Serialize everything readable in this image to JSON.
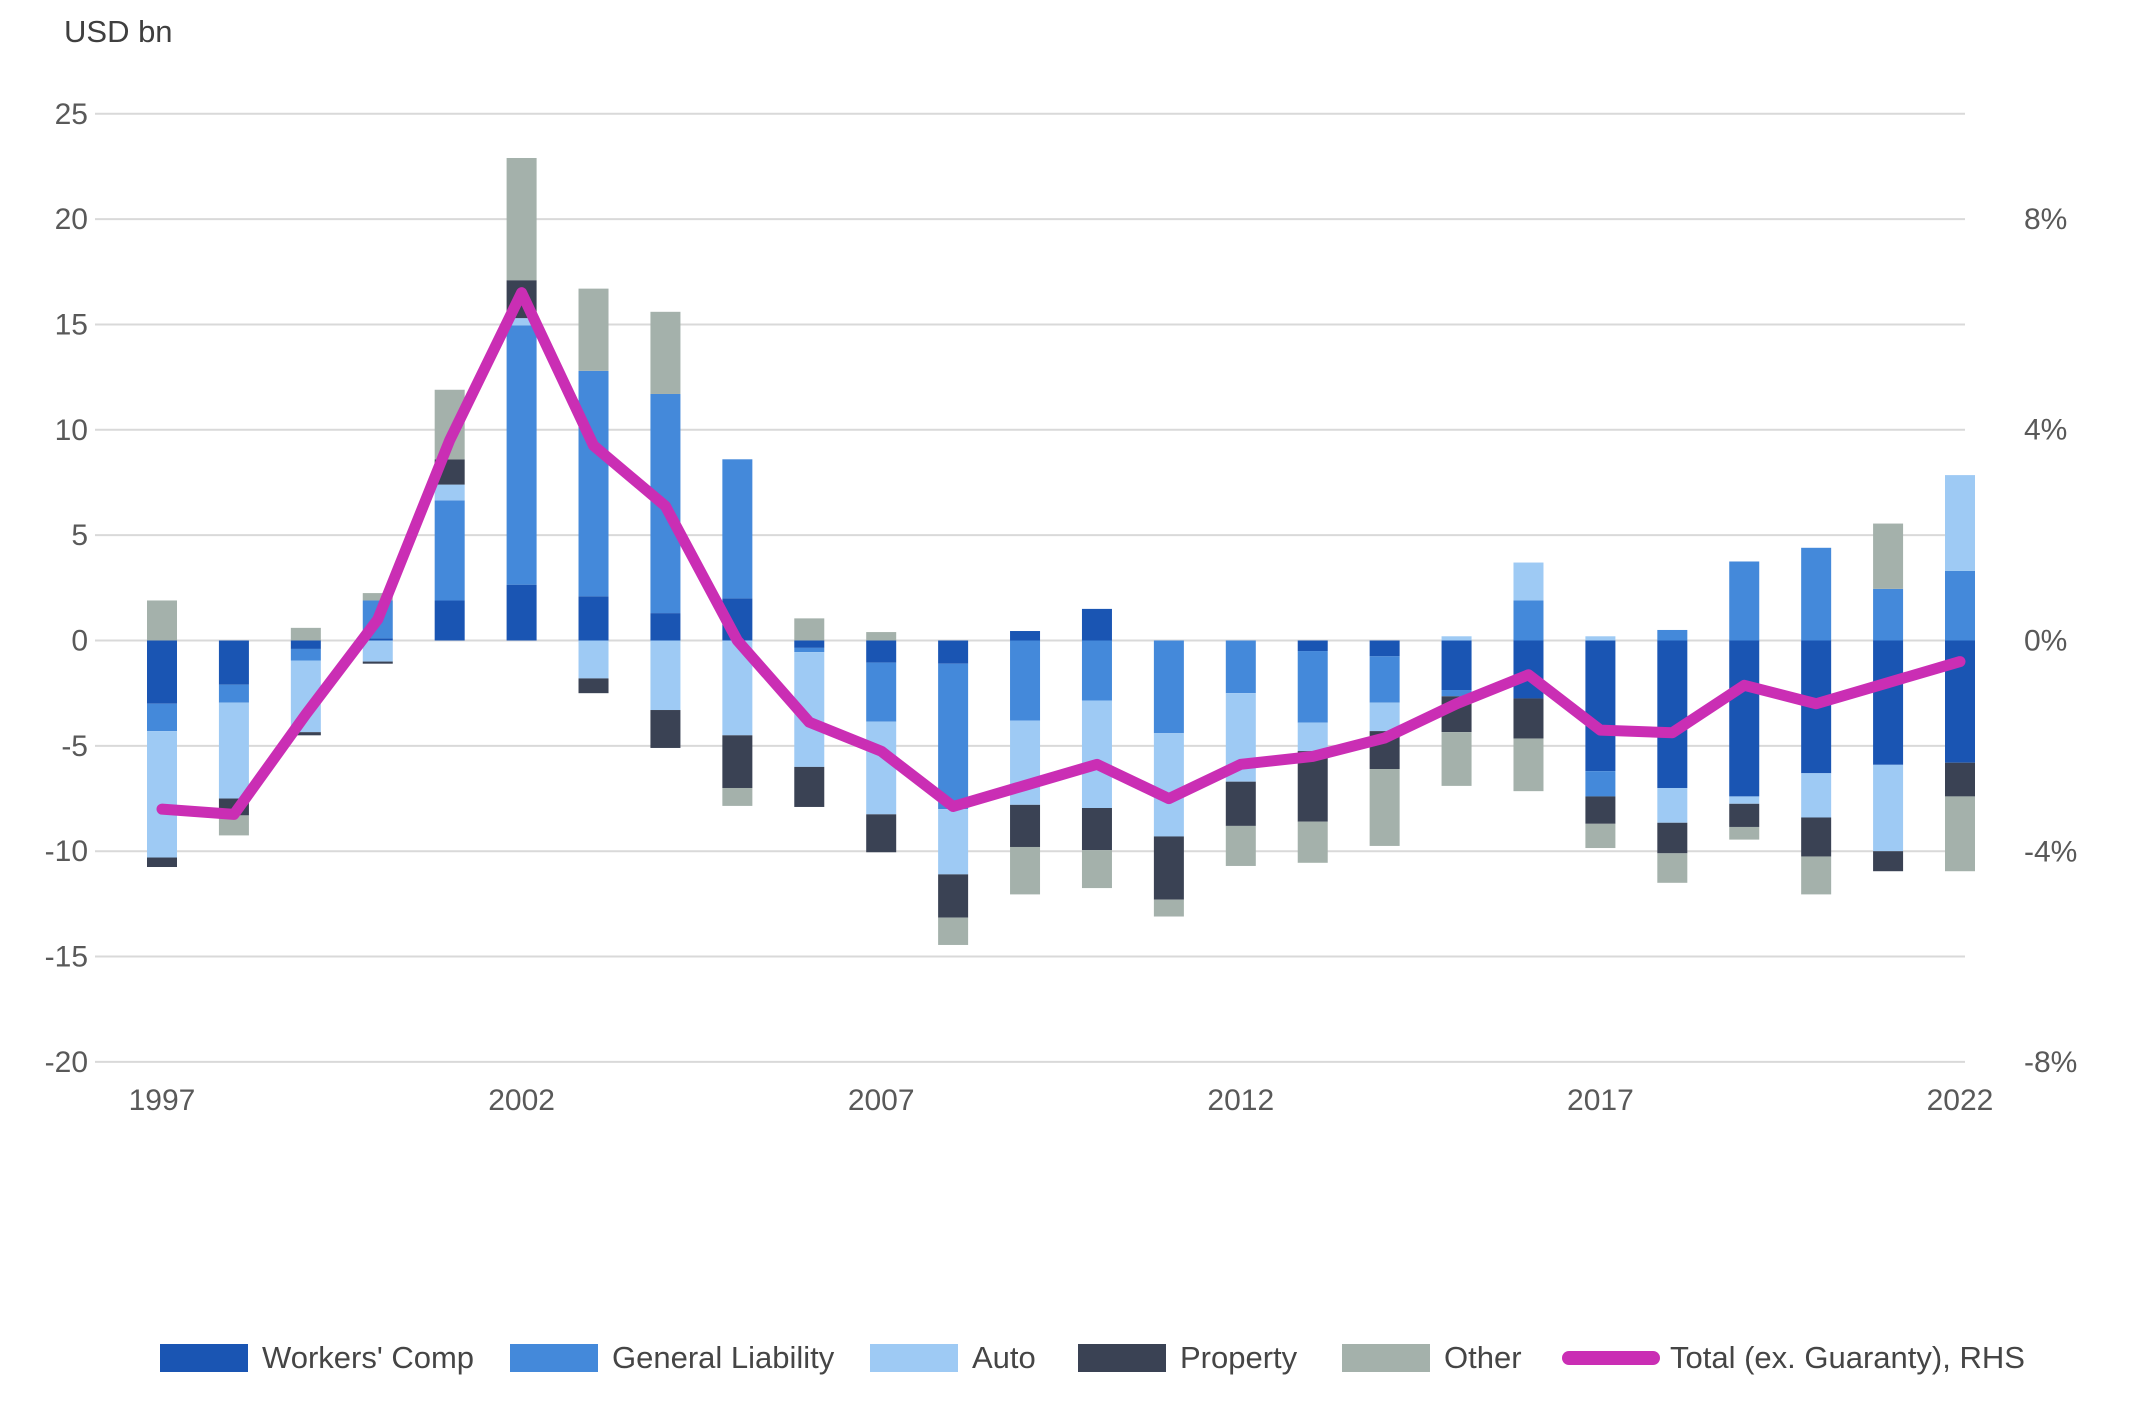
{
  "chart_data": {
    "type": "bar",
    "subtype": "stacked-bars-with-line-overlay",
    "title": "USD bn",
    "years": [
      1997,
      1998,
      1999,
      2000,
      2001,
      2002,
      2003,
      2004,
      2005,
      2006,
      2007,
      2008,
      2009,
      2010,
      2011,
      2012,
      2013,
      2014,
      2015,
      2016,
      2017,
      2018,
      2019,
      2020,
      2021,
      2022
    ],
    "series": [
      {
        "name": "Workers' Comp",
        "color_key": "workers_comp",
        "values": [
          -3.0,
          -2.1,
          -0.4,
          0.1,
          1.9,
          2.65,
          2.1,
          1.3,
          2.0,
          -0.35,
          -1.05,
          -1.1,
          0.45,
          1.5,
          0,
          0,
          -0.5,
          -0.75,
          -2.35,
          -2.75,
          -6.2,
          -7.0,
          -7.4,
          -6.3,
          -5.9,
          -5.8
        ]
      },
      {
        "name": "General Liability",
        "color_key": "general_liability",
        "values": [
          -1.3,
          -0.85,
          -0.55,
          1.8,
          4.75,
          12.3,
          10.7,
          10.4,
          6.6,
          -0.2,
          -2.8,
          -6.9,
          -3.8,
          -2.85,
          -4.4,
          -2.5,
          -3.4,
          -2.2,
          -0.3,
          1.9,
          -1.2,
          0.5,
          3.75,
          4.4,
          2.45,
          3.3
        ]
      },
      {
        "name": "Auto",
        "color_key": "auto",
        "values": [
          -6.0,
          -4.55,
          -3.4,
          -1.0,
          0.75,
          0.35,
          -1.8,
          -3.3,
          -4.5,
          -5.45,
          -4.4,
          -3.1,
          -4.0,
          -5.1,
          -4.9,
          -4.2,
          -1.35,
          -1.35,
          0.2,
          1.8,
          0.2,
          -1.65,
          -0.35,
          -2.1,
          -4.1,
          4.55
        ]
      },
      {
        "name": "Property",
        "color_key": "property",
        "values": [
          -0.45,
          -0.8,
          -0.15,
          -0.1,
          1.2,
          1.8,
          -0.7,
          -1.8,
          -2.5,
          -1.9,
          -1.8,
          -2.05,
          -2.0,
          -2.0,
          -3.0,
          -2.1,
          -3.35,
          -1.8,
          -1.7,
          -1.9,
          -1.3,
          -1.45,
          -1.1,
          -1.85,
          -0.95,
          -1.6
        ]
      },
      {
        "name": "Other",
        "color_key": "other",
        "values": [
          1.9,
          -0.95,
          0.6,
          0.35,
          3.3,
          5.8,
          3.9,
          3.9,
          -0.85,
          1.05,
          0.4,
          -1.3,
          -2.25,
          -1.8,
          -0.8,
          -1.9,
          -1.95,
          -3.65,
          -2.55,
          -2.5,
          -1.15,
          -1.4,
          -0.6,
          -1.8,
          3.1,
          -3.55
        ]
      }
    ],
    "line": {
      "name": "Total (ex. Guaranty), RHS",
      "color_key": "total_line",
      "unit": "%",
      "values": [
        -3.2,
        -3.3,
        -1.4,
        0.4,
        3.8,
        6.6,
        3.7,
        2.55,
        0.0,
        -1.55,
        -2.1,
        -3.15,
        -2.75,
        -2.35,
        -3.0,
        -2.35,
        -2.2,
        -1.85,
        -1.2,
        -0.65,
        -1.7,
        -1.75,
        -0.85,
        -1.2,
        -0.8,
        -0.4
      ]
    },
    "left_axis": {
      "title": "USD bn",
      "ticks": [
        25,
        20,
        15,
        10,
        5,
        0,
        -5,
        -10,
        -15,
        -20
      ],
      "min": -20,
      "max": 25,
      "grid": true
    },
    "right_axis": {
      "ticks": [
        "8%",
        "4%",
        "0%",
        "-4%",
        "-8%"
      ],
      "tick_values": [
        8,
        4,
        0,
        -4,
        -8
      ],
      "min": -8,
      "max": 10
    },
    "x_axis": {
      "tick_labels": [
        "1997",
        "2002",
        "2007",
        "2012",
        "2017",
        "2022"
      ],
      "tick_years": [
        1997,
        2002,
        2007,
        2012,
        2017,
        2022
      ]
    },
    "legend": [
      {
        "label": "Workers' Comp",
        "color_key": "workers_comp",
        "kind": "box"
      },
      {
        "label": "General Liability",
        "color_key": "general_liability",
        "kind": "box"
      },
      {
        "label": "Auto",
        "color_key": "auto",
        "kind": "box"
      },
      {
        "label": "Property",
        "color_key": "property",
        "kind": "box"
      },
      {
        "label": "Other",
        "color_key": "other",
        "kind": "box"
      },
      {
        "label": "Total (ex. Guaranty), RHS",
        "color_key": "total_line",
        "kind": "line"
      }
    ],
    "legend_position": "bottom"
  },
  "colors": {
    "workers_comp": "#1a55b3",
    "general_liability": "#4489da",
    "auto": "#9ecaf4",
    "property": "#3a4254",
    "other": "#a4b1ab",
    "total_line": "#ca2eb4",
    "gridline": "#d9d9d9",
    "tick_text": "#595959",
    "title_text": "#3f3f3f",
    "background": "#ffffff"
  }
}
